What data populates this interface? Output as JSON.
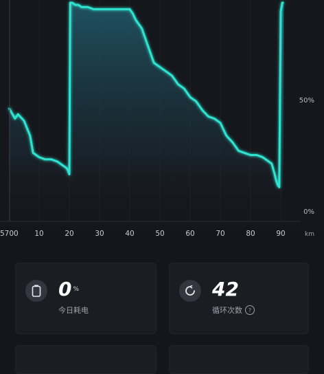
{
  "chart_data": {
    "type": "area",
    "x": [
      0,
      2,
      3,
      5,
      7,
      8,
      10,
      12,
      14,
      16,
      18,
      19,
      19.5,
      20,
      20.3,
      21,
      22,
      23,
      24,
      26,
      28,
      30,
      33,
      36,
      38,
      40,
      41,
      42,
      43,
      44,
      45,
      46,
      47,
      48,
      50,
      52,
      54,
      56,
      58,
      60,
      62,
      64,
      66,
      68,
      69,
      70,
      71,
      72,
      74,
      76,
      78,
      80,
      82,
      84,
      86,
      87,
      88,
      88.5,
      89,
      89.5,
      90,
      90.5,
      91
    ],
    "y": [
      51,
      46,
      48,
      45,
      38,
      30,
      28,
      27,
      27,
      26,
      24,
      23,
      22,
      20,
      100,
      100,
      99,
      99,
      98,
      98,
      97,
      97,
      97,
      97,
      97,
      97,
      95,
      92,
      90,
      88,
      84,
      80,
      76,
      72,
      70,
      68,
      66,
      62,
      60,
      56,
      54,
      50,
      47,
      46,
      45,
      44,
      41,
      38,
      35,
      31,
      30,
      29,
      29,
      28,
      26,
      25,
      20,
      17,
      15,
      14,
      96,
      100,
      100
    ],
    "xlabel": "km",
    "ylabel": "",
    "x_ticks": [
      "5700",
      "10",
      "20",
      "30",
      "40",
      "50",
      "60",
      "70",
      "80",
      "90"
    ],
    "y_ticks": [
      "0%",
      "50%"
    ],
    "ylim": [
      0,
      100
    ],
    "grid": true,
    "line_color": "#2de3cf",
    "fill_top_color": "#1f5564"
  },
  "cards": [
    {
      "icon": "battery-icon",
      "value": "0",
      "unit": "%",
      "label": "今日耗电",
      "help": false
    },
    {
      "icon": "cycle-icon",
      "value": "42",
      "unit": "",
      "label": "循环次数",
      "help": true,
      "help_glyph": "?"
    }
  ]
}
